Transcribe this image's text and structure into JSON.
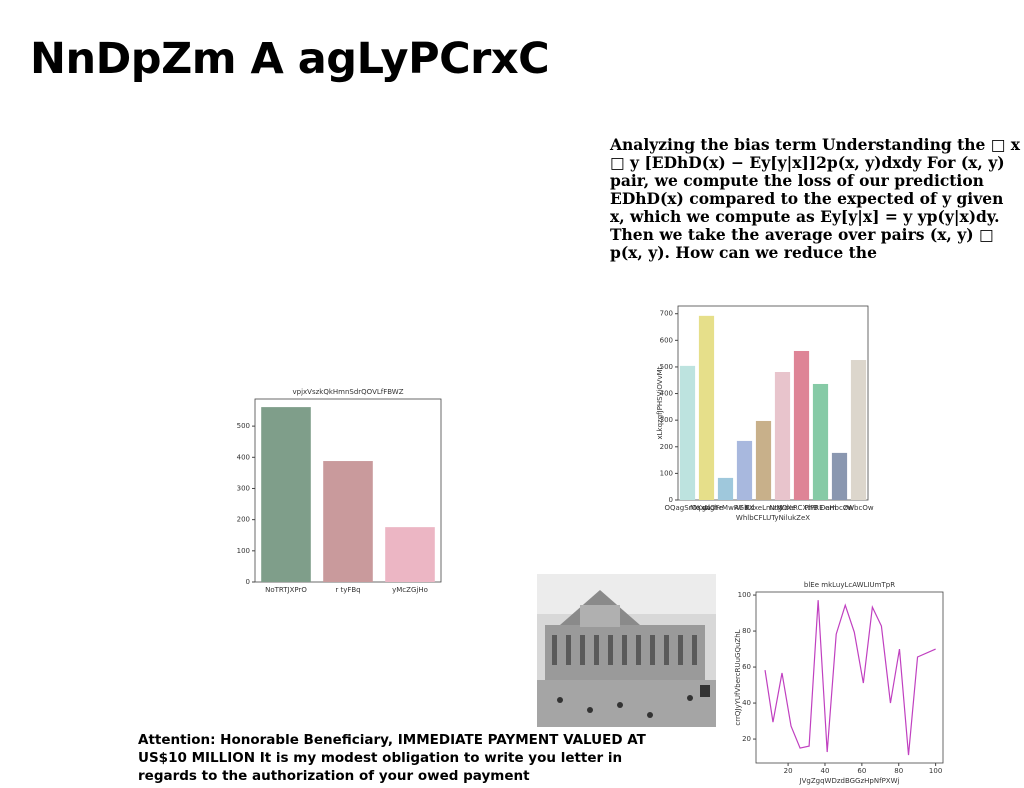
{
  "title": "NnDpZm A agLyPCrxC",
  "paragraph": "Analyzing the bias term Understanding the □ x □ y [EDhD(x) − Ey[y|x]]2p(x, y)dxdy For (x, y) pair, we compute the loss of our prediction EDhD(x) compared to the expected of y given x, which we compute as Ey[y|x] = y yp(y|x)dy. Then we take the average over pairs (x, y) □ p(x, y). How can we reduce the",
  "notice": "Attention: Honorable Beneficiary, IMMEDIATE PAYMENT VALUED AT US$10 MILLION It is my modest obligation to write you letter in regards to the authorization of your owed payment",
  "chart_data": [
    {
      "type": "bar",
      "title": "vpjxVszkQkHmnSdrQOVLfFBWZ",
      "categories": [
        "NoTRTJXPrO",
        "r tyFBq",
        "yMcZGjHo"
      ],
      "values": [
        561,
        388,
        176
      ],
      "colors": [
        "#7f9e8a",
        "#c99a9c",
        "#ecb6c4"
      ],
      "ylim": [
        0,
        587
      ],
      "yticks": [
        0,
        100,
        200,
        300,
        400,
        500
      ]
    },
    {
      "type": "bar",
      "xlabel": "WhlbCFLUTyNilukZeX",
      "ylabel": "xLkqzgfJPHSVjOVvMt",
      "categories": [
        "OQagSrOKgn",
        "MqxNghe",
        "wlOFrMwRGb",
        "AY Rd",
        "KXxeLmzM",
        "NtgOXe",
        "VdeRCXtPRE",
        "PhB Dam",
        "eHbcOw",
        "zWbcOw"
      ],
      "values": [
        504,
        692,
        83,
        222,
        297,
        481,
        560,
        436,
        177,
        526
      ],
      "colors": [
        "#bde3df",
        "#e6df8a",
        "#9fc8dc",
        "#a8b8de",
        "#c8b08a",
        "#e8c4cc",
        "#de8496",
        "#86caa6",
        "#8a97b0",
        "#dcd6cc"
      ],
      "ylim": [
        0,
        729
      ],
      "yticks": [
        0,
        100,
        200,
        300,
        400,
        500,
        600,
        700
      ]
    },
    {
      "type": "line",
      "title": "blEe mkLuyLcAWLIUmTpR",
      "xlabel": "JVgZgqWDzdBGGzHpNfPXWj",
      "ylabel": "crrQJyYUfVbercRUuGQuZhL",
      "x": [
        7.5,
        11.8,
        16.7,
        21.6,
        26.5,
        31.4,
        36.3,
        41.2,
        46.1,
        51,
        55.9,
        60.8,
        65.7,
        70.6,
        75.5,
        80.4,
        85.3,
        90.2,
        100
      ],
      "values": [
        58.3,
        29.4,
        56.7,
        27.2,
        15,
        16.1,
        97.2,
        12.8,
        78.3,
        94.4,
        79.4,
        51.1,
        93.3,
        82.8,
        40,
        70,
        11.1,
        65.6,
        70
      ],
      "color": "#c040c0",
      "xlim": [
        2.6,
        104
      ],
      "ylim": [
        6.7,
        101.7
      ],
      "xticks": [
        20,
        40,
        60,
        80,
        100
      ],
      "yticks": [
        20,
        40,
        60,
        80,
        100
      ]
    }
  ]
}
